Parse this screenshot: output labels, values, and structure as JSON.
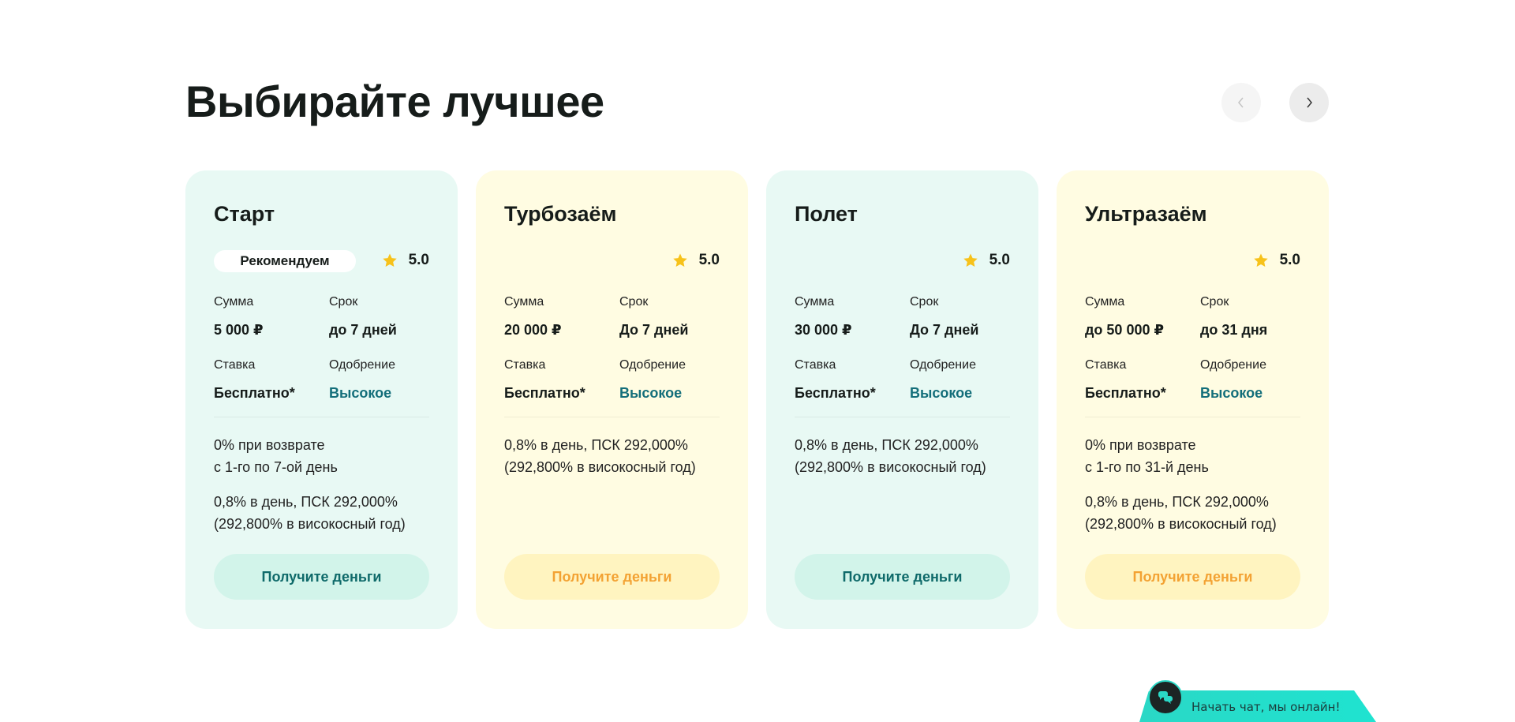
{
  "header": {
    "title": "Выбирайте лучшее",
    "prev_icon": "chevron-left-icon",
    "next_icon": "chevron-right-icon"
  },
  "labels": {
    "sum": "Сумма",
    "term": "Срок",
    "rate": "Ставка",
    "approval": "Одобрение"
  },
  "cards": [
    {
      "title": "Старт",
      "badge": "Рекомендуем",
      "rating": "5.0",
      "sum": "5 000 ₽",
      "term": "до 7 дней",
      "rate": "Бесплатно*",
      "approval": "Высокое",
      "desc1_line1": "0% при возврате",
      "desc1_line2": "с 1-го по 7-ой день",
      "desc2_line1": "0,8% в день, ПСК 292,000%",
      "desc2_line2": "(292,800% в високосный год)",
      "button": "Получите деньги",
      "theme": "mint"
    },
    {
      "title": "Турбозаём",
      "rating": "5.0",
      "sum": "20 000 ₽",
      "term": "До 7 дней",
      "rate": "Бесплатно*",
      "approval": "Высокое",
      "desc1_line1": "0,8% в день, ПСК 292,000%",
      "desc1_line2": "(292,800% в високосный год)",
      "button": "Получите деньги",
      "theme": "yellow"
    },
    {
      "title": "Полет",
      "rating": "5.0",
      "sum": "30 000 ₽",
      "term": "До 7 дней",
      "rate": "Бесплатно*",
      "approval": "Высокое",
      "desc1_line1": "0,8% в день, ПСК 292,000%",
      "desc1_line2": "(292,800% в високосный год)",
      "button": "Получите деньги",
      "theme": "mint"
    },
    {
      "title": "Ультразаём",
      "rating": "5.0",
      "sum": "до 50 000 ₽",
      "term": "до 31 дня",
      "rate": "Бесплатно*",
      "approval": "Высокое",
      "desc1_line1": "0% при возврате",
      "desc1_line2": "с 1-го по 31-й день",
      "desc2_line1": "0,8% в день, ПСК 292,000%",
      "desc2_line2": "(292,800% в високосный год)",
      "button": "Получите деньги",
      "theme": "yellow"
    }
  ],
  "chat": {
    "label": "Начать чат, мы онлайн!",
    "icon": "chat-bubbles-icon"
  },
  "colors": {
    "mint_card": "#e8f9f4",
    "yellow_card": "#fffce2",
    "accent_teal": "#136e7a",
    "accent_orange": "#f3a233",
    "star": "#f7c21a",
    "chat": "#2ad8c6"
  }
}
